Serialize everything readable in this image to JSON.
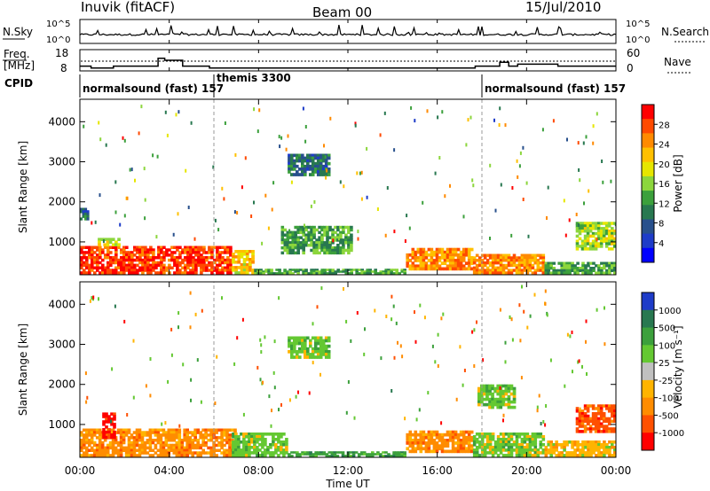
{
  "header": {
    "station": "Inuvik (fitACF)",
    "beam": "Beam 00",
    "date": "15/Jul/2010"
  },
  "noise_panel": {
    "left_label": "N.Sky",
    "right_label": "N.Search",
    "left_ticks": [
      "10^5",
      "10^0"
    ],
    "right_ticks": [
      "10^5",
      "10^0"
    ]
  },
  "freq_panel": {
    "left_label_1": "Freq.",
    "left_label_2": "[MHz]",
    "right_label": "Nave",
    "left_ticks": [
      "18",
      "8"
    ],
    "right_ticks": [
      "60",
      "0"
    ]
  },
  "cpid": {
    "label": "CPID",
    "segments": [
      {
        "name": "normalsound (fast) 157",
        "start_h": 0,
        "end_h": 6
      },
      {
        "name": "themis 3300",
        "start_h": 6,
        "end_h": 18
      },
      {
        "name": "normalsound (fast) 157",
        "start_h": 18,
        "end_h": 24
      }
    ]
  },
  "power_panel": {
    "ylabel": "Slant Range [km]",
    "colorbar_label": "Power [dB]",
    "colorbar_ticks": [
      "28",
      "24",
      "20",
      "16",
      "12",
      "8",
      "4"
    ],
    "colorbar_colors": [
      "#ff0000",
      "#ff4a00",
      "#ff8a00",
      "#ffc000",
      "#e6e600",
      "#8cd63c",
      "#3ca03c",
      "#287850",
      "#28508c",
      "#1e3cc8",
      "#0000ff"
    ]
  },
  "velocity_panel": {
    "ylabel": "Slant Range [km]",
    "colorbar_label": "Velocity [m s⁻¹]",
    "colorbar_ticks": [
      "1000",
      "500",
      "100",
      "25",
      "-25",
      "-100",
      "-500",
      "-1000"
    ],
    "colorbar_colors": [
      "#1e3cc8",
      "#287850",
      "#3ca03c",
      "#64c832",
      "#c0c0c0",
      "#ffb400",
      "#ff8c00",
      "#ff5000",
      "#ff0000"
    ]
  },
  "chart_data": {
    "type": "heatmap",
    "x_axis": {
      "label": "Time UT",
      "range_hours": [
        0,
        24
      ],
      "tick_labels": [
        "00:00",
        "04:00",
        "08:00",
        "12:00",
        "16:00",
        "20:00",
        "00:00"
      ]
    },
    "y_axis": {
      "label": "Slant Range [km]",
      "range_km": [
        180,
        4560
      ],
      "tick_values": [
        1000,
        2000,
        3000,
        4000
      ]
    },
    "frequency_mhz_steps": [
      {
        "start_h": 0,
        "end_h": 0.5,
        "value": 10
      },
      {
        "start_h": 0.5,
        "end_h": 1.5,
        "value": 9
      },
      {
        "start_h": 1.5,
        "end_h": 3.5,
        "value": 10
      },
      {
        "start_h": 3.5,
        "end_h": 3.8,
        "value": 14
      },
      {
        "start_h": 3.8,
        "end_h": 4.6,
        "value": 13
      },
      {
        "start_h": 4.6,
        "end_h": 5.8,
        "value": 10
      },
      {
        "start_h": 5.8,
        "end_h": 17.7,
        "value": 9
      },
      {
        "start_h": 17.7,
        "end_h": 18.8,
        "value": 10
      },
      {
        "start_h": 18.8,
        "end_h": 19.2,
        "value": 12
      },
      {
        "start_h": 19.2,
        "end_h": 19.6,
        "value": 10
      },
      {
        "start_h": 19.6,
        "end_h": 21.4,
        "value": 11
      },
      {
        "start_h": 21.4,
        "end_h": 24,
        "value": 10
      }
    ],
    "power_regions": [
      {
        "t0": 0,
        "t1": 6.8,
        "r0": 200,
        "r1": 900,
        "level": 28
      },
      {
        "t0": 6.8,
        "t1": 7.8,
        "r0": 200,
        "r1": 800,
        "level": 20
      },
      {
        "t0": 7.8,
        "t1": 14.6,
        "r0": 200,
        "r1": 330,
        "level": 12
      },
      {
        "t0": 14.6,
        "t1": 17.6,
        "r0": 300,
        "r1": 850,
        "level": 24
      },
      {
        "t0": 17.6,
        "t1": 20.8,
        "r0": 200,
        "r1": 700,
        "level": 24
      },
      {
        "t0": 20.8,
        "t1": 24,
        "r0": 200,
        "r1": 500,
        "level": 12
      },
      {
        "t0": 22.2,
        "t1": 24,
        "r0": 800,
        "r1": 1500,
        "level": 16
      },
      {
        "t0": 9.3,
        "t1": 11.2,
        "r0": 2650,
        "r1": 3200,
        "level": 8
      },
      {
        "t0": 9.0,
        "t1": 12.2,
        "r0": 700,
        "r1": 1400,
        "level": 12
      },
      {
        "t0": 0,
        "t1": 0.4,
        "r0": 1550,
        "r1": 1850,
        "level": 8
      },
      {
        "t0": 0.8,
        "t1": 1.8,
        "r0": 900,
        "r1": 1100,
        "level": 16
      }
    ],
    "velocity_regions": [
      {
        "t0": 0,
        "t1": 7.0,
        "r0": 200,
        "r1": 900,
        "level": -100
      },
      {
        "t0": 1.0,
        "t1": 1.6,
        "r0": 650,
        "r1": 1300,
        "level": -1000
      },
      {
        "t0": 6.8,
        "t1": 9.3,
        "r0": 200,
        "r1": 800,
        "level": 25
      },
      {
        "t0": 9.3,
        "t1": 14.6,
        "r0": 200,
        "r1": 330,
        "level": 100
      },
      {
        "t0": 14.6,
        "t1": 17.6,
        "r0": 300,
        "r1": 850,
        "level": -100
      },
      {
        "t0": 17.6,
        "t1": 20.8,
        "r0": 200,
        "r1": 800,
        "level": 25
      },
      {
        "t0": 20.8,
        "t1": 24,
        "r0": 200,
        "r1": 600,
        "level": -25
      },
      {
        "t0": 22.2,
        "t1": 24,
        "r0": 800,
        "r1": 1500,
        "level": -500
      },
      {
        "t0": 9.3,
        "t1": 11.2,
        "r0": 2650,
        "r1": 3200,
        "level": 25
      },
      {
        "t0": 17.8,
        "t1": 19.5,
        "r0": 1400,
        "r1": 2000,
        "level": 25
      }
    ]
  }
}
